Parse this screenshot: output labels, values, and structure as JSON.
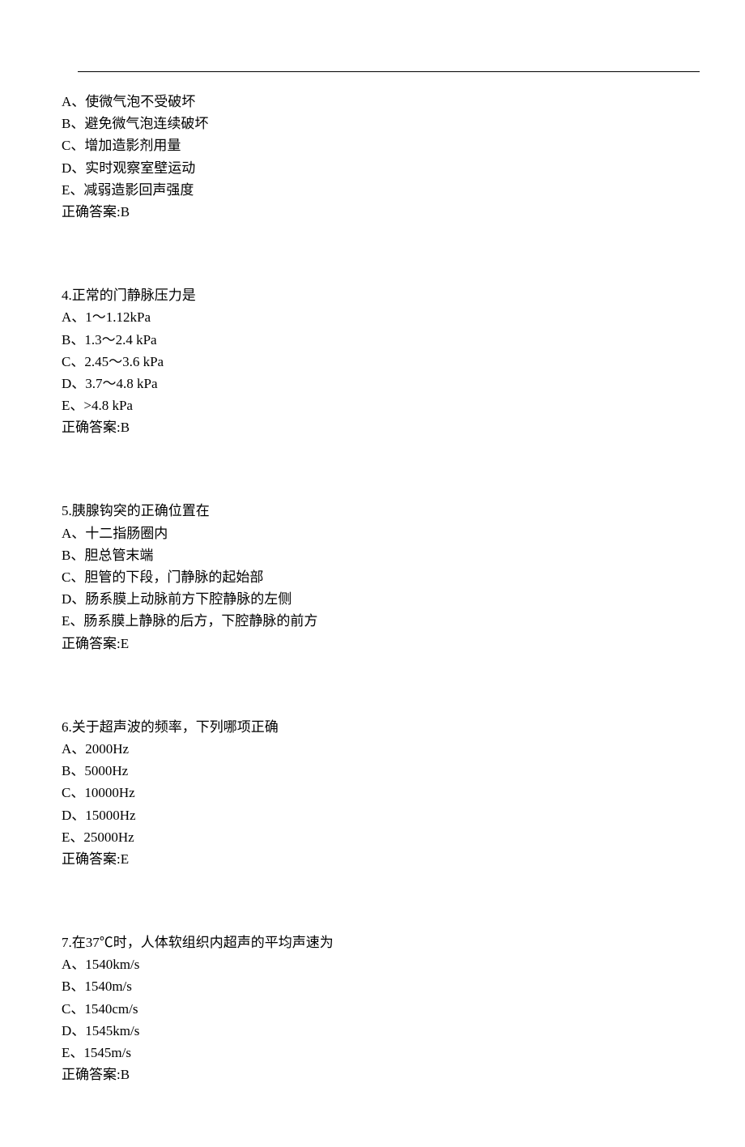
{
  "text_color": "#000000",
  "background_color": "#ffffff",
  "font_size_pt": 13,
  "line_color": "#000000",
  "q3": {
    "optA": "A、使微气泡不受破坏",
    "optB": "B、避免微气泡连续破坏",
    "optC": "C、增加造影剂用量",
    "optD": "D、实时观察室壁运动",
    "optE": "E、减弱造影回声强度",
    "answer": "正确答案:B"
  },
  "q4": {
    "stem": "4.正常的门静脉压力是",
    "optA": "A、1～1.12kPa",
    "optB": "B、1.3～2.4 kPa",
    "optC": "C、2.45～3.6 kPa",
    "optD": "D、3.7～4.8 kPa",
    "optE": "E、>4.8 kPa",
    "answer": "正确答案:B"
  },
  "q5": {
    "stem": "5.胰腺钩突的正确位置在",
    "optA": "A、十二指肠圈内",
    "optB": "B、胆总管末端",
    "optC": "C、胆管的下段，门静脉的起始部",
    "optD": "D、肠系膜上动脉前方下腔静脉的左侧",
    "optE": "E、肠系膜上静脉的后方，下腔静脉的前方",
    "answer": "正确答案:E"
  },
  "q6": {
    "stem": "6.关于超声波的频率，下列哪项正确",
    "optA": "A、2000Hz",
    "optB": "B、5000Hz",
    "optC": "C、10000Hz",
    "optD": "D、15000Hz",
    "optE": "E、25000Hz",
    "answer": "正确答案:E"
  },
  "q7": {
    "stem": "7.在37℃时，人体软组织内超声的平均声速为",
    "optA": "A、1540km/s",
    "optB": "B、1540m/s",
    "optC": "C、1540cm/s",
    "optD": "D、1545km/s",
    "optE": "E、1545m/s",
    "answer": "正确答案:B"
  }
}
